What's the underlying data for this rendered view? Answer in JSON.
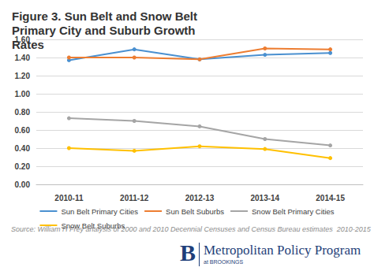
{
  "chart_data": {
    "type": "line",
    "title": "Figure 3. Sun Belt and Snow Belt Primary City and Suburb Growth Rates",
    "categories": [
      "2010-11",
      "2011-12",
      "2012-13",
      "2013-14",
      "2014-15"
    ],
    "series": [
      {
        "name": "Sun Belt Primary Cities",
        "color": "#4a90d0",
        "values": [
          1.37,
          1.49,
          1.38,
          1.43,
          1.45
        ]
      },
      {
        "name": "Sun Belt Suburbs",
        "color": "#ed7d31",
        "values": [
          1.4,
          1.4,
          1.38,
          1.5,
          1.49
        ]
      },
      {
        "name": "Snow Belt Primary Cities",
        "color": "#a5a5a5",
        "values": [
          0.73,
          0.7,
          0.64,
          0.5,
          0.43
        ]
      },
      {
        "name": "Snow Belt Suburbs",
        "color": "#ffc000",
        "values": [
          0.4,
          0.37,
          0.42,
          0.39,
          0.29
        ]
      }
    ],
    "ylim": [
      0,
      1.6
    ],
    "yticks": [
      {
        "value": 0,
        "label": "0.00"
      },
      {
        "value": 0.2,
        "label": "0.20"
      },
      {
        "value": 0.4,
        "label": "0.40"
      },
      {
        "value": 0.6,
        "label": "0.60"
      },
      {
        "value": 0.8,
        "label": "0.80"
      },
      {
        "value": 1.0,
        "label": "1.00"
      },
      {
        "value": 1.2,
        "label": "1.20"
      },
      {
        "value": 1.4,
        "label": "1.40"
      },
      {
        "value": 1.6,
        "label": "1.60"
      }
    ],
    "grid": true,
    "legend": "bottom",
    "marker": "circle",
    "annotations": [
      "Source: William H Frey analysis of 2000 and 2010 Decennial Censuses and Census Bureau estimates  2010-2015",
      "B",
      "Metropolitan Policy Program",
      "at BROOKINGS"
    ]
  }
}
